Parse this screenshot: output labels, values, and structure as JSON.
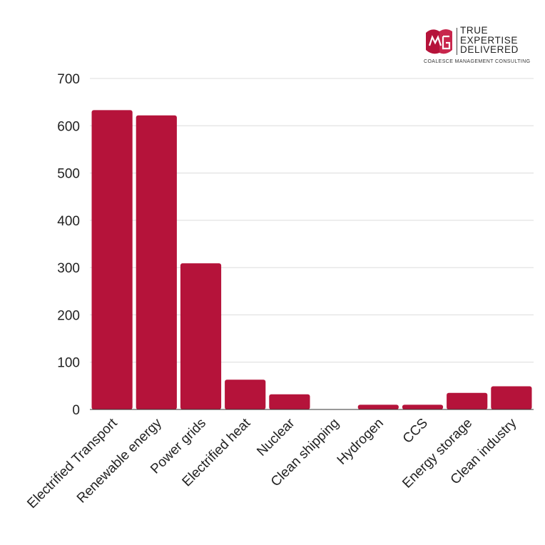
{
  "logo": {
    "line1": "TRUE",
    "line2": "EXPERTISE",
    "line3": "DELIVERED",
    "subtitle": "COALESCE MANAGEMENT CONSULTING",
    "brand_color": "#b5133a"
  },
  "chart_data": {
    "type": "bar",
    "title": "",
    "xlabel": "",
    "ylabel": "",
    "categories": [
      "Electrified Transport",
      "Renewable energy",
      "Power grids",
      "Electrified heat",
      "Nuclear",
      "Clean shipping",
      "Hydrogen",
      "CCS",
      "Energy storage",
      "Clean industry"
    ],
    "values": [
      633,
      622,
      309,
      63,
      32,
      0,
      10,
      10,
      35,
      49
    ],
    "ylim": [
      0,
      700
    ],
    "yticks": [
      0,
      100,
      200,
      300,
      400,
      500,
      600,
      700
    ],
    "grid": true,
    "bar_color": "#b5133a",
    "legend": "none"
  }
}
